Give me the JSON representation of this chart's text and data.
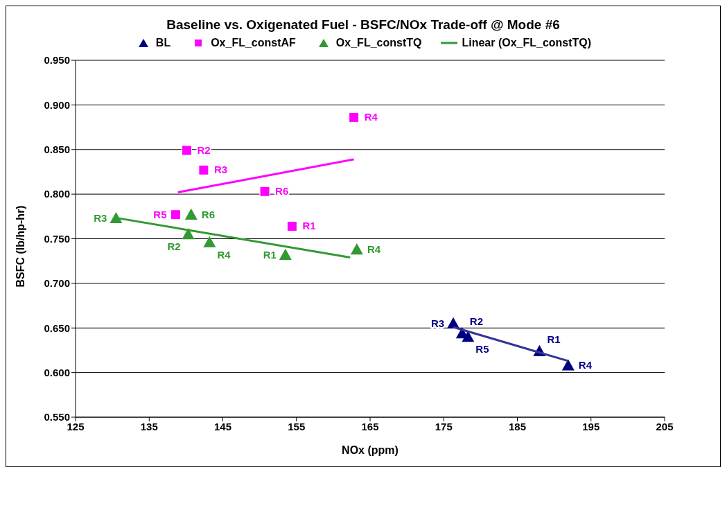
{
  "chart_data": {
    "type": "scatter",
    "title": "Baseline vs. Oxigenated Fuel - BSFC/NOx Trade-off @ Mode #6",
    "xlabel": "NOx (ppm)",
    "ylabel": "BSFC (lb/hp-hr)",
    "xlim": [
      125,
      205
    ],
    "xticks": [
      125,
      135,
      145,
      155,
      165,
      175,
      185,
      195,
      205
    ],
    "ylim": [
      0.55,
      0.95
    ],
    "yticks": [
      {
        "value": 0.55,
        "label": "0.550"
      },
      {
        "value": 0.6,
        "label": "0.600"
      },
      {
        "value": 0.65,
        "label": "0.650"
      },
      {
        "value": 0.7,
        "label": "0.700"
      },
      {
        "value": 0.75,
        "label": "0.750"
      },
      {
        "value": 0.8,
        "label": "0.800"
      },
      {
        "value": 0.85,
        "label": "0.850"
      },
      {
        "value": 0.9,
        "label": "0.900"
      },
      {
        "value": 0.95,
        "label": "0.950"
      }
    ],
    "grid": "y",
    "legend": "top",
    "series": [
      {
        "name": "BL",
        "marker": "triangle",
        "color": "#000080",
        "x": [
          176.3,
          177.5,
          178.3,
          188.0,
          191.9
        ],
        "values": [
          0.655,
          0.644,
          0.64,
          0.624,
          0.608
        ],
        "value_labels": [
          "R3",
          "R2",
          "R5",
          "R1",
          "R4"
        ]
      },
      {
        "type": "line",
        "marker": "none",
        "color": "#333399",
        "x": [
          176.3,
          191.9
        ],
        "values": [
          0.651,
          0.613
        ]
      },
      {
        "name": "Ox_FL_constAF",
        "marker": "square",
        "color": "#ff00ff",
        "x": [
          162.8,
          140.1,
          142.4,
          150.7,
          138.6,
          154.4
        ],
        "values": [
          0.886,
          0.849,
          0.827,
          0.803,
          0.777,
          0.764
        ],
        "value_labels": [
          "R4",
          "R2",
          "R3",
          "R6",
          "R5",
          "R1"
        ]
      },
      {
        "type": "line",
        "marker": "none",
        "color": "#ff00ff",
        "x": [
          138.9,
          162.8
        ],
        "values": [
          0.802,
          0.839
        ]
      },
      {
        "name": "Ox_FL_constTQ",
        "marker": "triangle",
        "color": "#339933",
        "x": [
          130.5,
          140.7,
          140.3,
          143.2,
          153.5,
          163.2
        ],
        "values": [
          0.773,
          0.777,
          0.755,
          0.746,
          0.732,
          0.738
        ],
        "value_labels": [
          "R3",
          "R6",
          "R2",
          "R4",
          "R1",
          "R4"
        ]
      },
      {
        "name": "Linear (Ox_FL_constTQ)",
        "type": "line",
        "marker": "none",
        "color": "#339933",
        "x": [
          130.8,
          162.3
        ],
        "values": [
          0.773,
          0.729
        ]
      }
    ]
  }
}
